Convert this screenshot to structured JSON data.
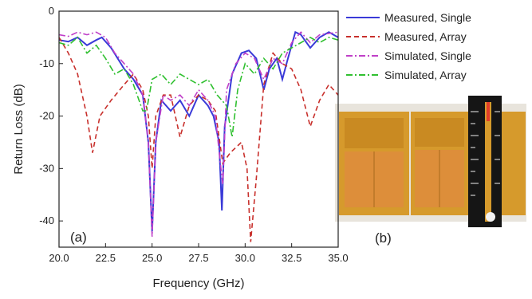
{
  "chart_data": {
    "type": "line",
    "xlabel": "Frequency (GHz)",
    "ylabel": "Return Loss (dB)",
    "xlim": [
      20.0,
      35.0
    ],
    "ylim": [
      -45,
      0
    ],
    "x_ticks": [
      "20.0",
      "22.5",
      "25.0",
      "27.5",
      "30.0",
      "32.5",
      "35.0"
    ],
    "y_ticks": [
      "0",
      "-10",
      "-20",
      "-30",
      "-40"
    ],
    "grid": false,
    "legend_position": "top-right",
    "panel_label": "(a)",
    "series": [
      {
        "name": "Measured, Single",
        "color": "#3a3ad8",
        "dash": "solid",
        "points": [
          [
            20.0,
            -5.5
          ],
          [
            20.5,
            -5.8
          ],
          [
            21.0,
            -5.0
          ],
          [
            21.5,
            -6.5
          ],
          [
            22.0,
            -5.5
          ],
          [
            22.3,
            -5.0
          ],
          [
            22.8,
            -7.0
          ],
          [
            23.5,
            -11.0
          ],
          [
            24.0,
            -13.0
          ],
          [
            24.5,
            -16.0
          ],
          [
            24.8,
            -25.0
          ],
          [
            25.0,
            -42.0
          ],
          [
            25.2,
            -25.0
          ],
          [
            25.5,
            -17.0
          ],
          [
            26.0,
            -19.0
          ],
          [
            26.5,
            -17.0
          ],
          [
            27.0,
            -20.0
          ],
          [
            27.5,
            -16.0
          ],
          [
            28.0,
            -18.0
          ],
          [
            28.3,
            -20.0
          ],
          [
            28.6,
            -25.0
          ],
          [
            28.75,
            -38.0
          ],
          [
            28.9,
            -22.0
          ],
          [
            29.3,
            -12.0
          ],
          [
            29.8,
            -8.0
          ],
          [
            30.2,
            -7.5
          ],
          [
            30.6,
            -9.0
          ],
          [
            31.0,
            -15.0
          ],
          [
            31.3,
            -11.0
          ],
          [
            31.7,
            -9.0
          ],
          [
            32.0,
            -13.0
          ],
          [
            32.3,
            -9.0
          ],
          [
            32.7,
            -4.0
          ],
          [
            33.0,
            -4.5
          ],
          [
            33.5,
            -7.0
          ],
          [
            34.0,
            -5.0
          ],
          [
            34.5,
            -4.0
          ],
          [
            35.0,
            -5.0
          ]
        ]
      },
      {
        "name": "Measured, Array",
        "color": "#c8302c",
        "dash": "6,4",
        "points": [
          [
            20.0,
            -5.0
          ],
          [
            20.5,
            -8.0
          ],
          [
            21.0,
            -12.0
          ],
          [
            21.5,
            -20.0
          ],
          [
            21.8,
            -27.0
          ],
          [
            22.2,
            -20.0
          ],
          [
            22.8,
            -17.0
          ],
          [
            23.5,
            -14.0
          ],
          [
            24.0,
            -12.0
          ],
          [
            24.5,
            -15.0
          ],
          [
            24.8,
            -20.0
          ],
          [
            25.0,
            -30.0
          ],
          [
            25.2,
            -20.0
          ],
          [
            25.6,
            -16.0
          ],
          [
            26.0,
            -16.0
          ],
          [
            26.5,
            -24.0
          ],
          [
            27.0,
            -18.0
          ],
          [
            27.5,
            -16.0
          ],
          [
            28.0,
            -17.0
          ],
          [
            28.4,
            -19.0
          ],
          [
            28.8,
            -29.0
          ],
          [
            29.2,
            -27.0
          ],
          [
            29.8,
            -25.0
          ],
          [
            30.1,
            -30.0
          ],
          [
            30.3,
            -44.0
          ],
          [
            30.6,
            -32.0
          ],
          [
            31.0,
            -14.0
          ],
          [
            31.5,
            -8.0
          ],
          [
            32.0,
            -10.0
          ],
          [
            32.5,
            -11.0
          ],
          [
            33.0,
            -15.0
          ],
          [
            33.5,
            -22.0
          ],
          [
            34.0,
            -17.0
          ],
          [
            34.5,
            -14.0
          ],
          [
            35.0,
            -16.0
          ]
        ]
      },
      {
        "name": "Simulated, Single",
        "color": "#c040c8",
        "dash": "8,3,2,3",
        "points": [
          [
            20.0,
            -4.5
          ],
          [
            20.5,
            -4.8
          ],
          [
            21.0,
            -4.0
          ],
          [
            21.5,
            -4.5
          ],
          [
            22.0,
            -4.0
          ],
          [
            22.5,
            -5.0
          ],
          [
            23.0,
            -8.0
          ],
          [
            23.5,
            -10.0
          ],
          [
            24.0,
            -12.0
          ],
          [
            24.5,
            -16.0
          ],
          [
            24.8,
            -25.0
          ],
          [
            25.0,
            -43.0
          ],
          [
            25.2,
            -25.0
          ],
          [
            25.6,
            -16.0
          ],
          [
            26.0,
            -17.0
          ],
          [
            26.5,
            -16.0
          ],
          [
            27.0,
            -18.0
          ],
          [
            27.5,
            -15.0
          ],
          [
            28.0,
            -17.0
          ],
          [
            28.4,
            -20.0
          ],
          [
            28.7,
            -30.0
          ],
          [
            28.8,
            -33.0
          ],
          [
            29.0,
            -15.0
          ],
          [
            29.5,
            -10.0
          ],
          [
            30.0,
            -8.0
          ],
          [
            30.5,
            -9.0
          ],
          [
            31.0,
            -13.0
          ],
          [
            31.5,
            -9.0
          ],
          [
            32.0,
            -10.0
          ],
          [
            32.5,
            -6.0
          ],
          [
            33.0,
            -4.0
          ],
          [
            33.5,
            -6.0
          ],
          [
            34.0,
            -4.5
          ],
          [
            35.0,
            -4.0
          ]
        ]
      },
      {
        "name": "Simulated, Array",
        "color": "#30c030",
        "dash": "8,3,2,3",
        "points": [
          [
            20.0,
            -6.0
          ],
          [
            20.5,
            -6.5
          ],
          [
            21.0,
            -5.0
          ],
          [
            21.5,
            -8.0
          ],
          [
            22.0,
            -6.5
          ],
          [
            22.5,
            -9.0
          ],
          [
            23.0,
            -12.0
          ],
          [
            23.5,
            -11.0
          ],
          [
            24.0,
            -14.0
          ],
          [
            24.5,
            -19.0
          ],
          [
            24.7,
            -19.0
          ],
          [
            25.0,
            -13.0
          ],
          [
            25.5,
            -12.0
          ],
          [
            26.0,
            -14.0
          ],
          [
            26.5,
            -12.0
          ],
          [
            27.0,
            -13.0
          ],
          [
            27.5,
            -14.0
          ],
          [
            28.0,
            -13.0
          ],
          [
            28.5,
            -16.0
          ],
          [
            29.0,
            -18.0
          ],
          [
            29.3,
            -24.0
          ],
          [
            29.6,
            -15.0
          ],
          [
            30.0,
            -10.0
          ],
          [
            30.5,
            -12.0
          ],
          [
            31.0,
            -9.0
          ],
          [
            31.5,
            -11.0
          ],
          [
            32.0,
            -8.0
          ],
          [
            32.5,
            -7.0
          ],
          [
            33.0,
            -6.0
          ],
          [
            33.5,
            -5.0
          ],
          [
            34.0,
            -6.0
          ],
          [
            34.5,
            -5.0
          ],
          [
            35.0,
            -5.5
          ]
        ]
      }
    ]
  },
  "photo": {
    "panel_label": "(b)"
  }
}
